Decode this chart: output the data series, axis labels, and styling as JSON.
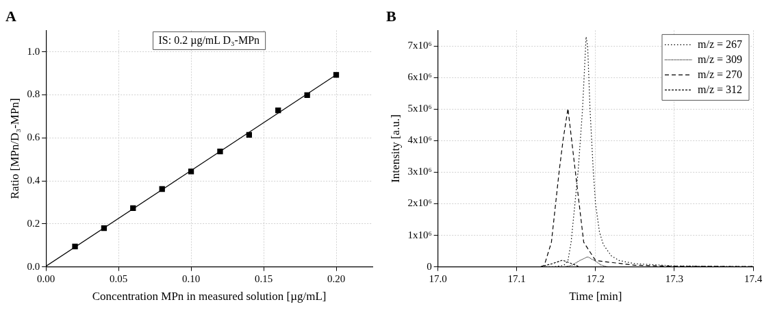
{
  "chart_data": [
    {
      "type": "scatter",
      "title": "A",
      "xlabel": "Concentration MPn in measured solution [µg/mL]",
      "ylabel": "Ratio [MPn/D₃-MPn]",
      "annotations": [
        "IS: 0.2 µg/mL D₃-MPn"
      ],
      "x": [
        0.02,
        0.04,
        0.06,
        0.08,
        0.1,
        0.12,
        0.14,
        0.16,
        0.18,
        0.2
      ],
      "series": [
        {
          "color": "#000000",
          "values": [
            0.095,
            0.18,
            0.273,
            0.362,
            0.444,
            0.537,
            0.614,
            0.728,
            0.799,
            0.893
          ]
        },
        {
          "type": "line",
          "marker": "none",
          "color": "#000000",
          "x": [
            0,
            0.2
          ],
          "values": [
            0.003,
            0.893
          ]
        }
      ],
      "marker": "square",
      "xlim": [
        0,
        0.225
      ],
      "ylim": [
        0,
        1.1
      ],
      "xticks": [
        {
          "value": 0,
          "label": "0.00"
        },
        0.05,
        {
          "value": 0.1,
          "label": "0.10"
        },
        0.15,
        {
          "value": 0.2,
          "label": "0.20"
        }
      ],
      "yticks": [
        {
          "value": 0,
          "label": "0.0"
        },
        0.2,
        0.4,
        0.6,
        0.8,
        {
          "value": 1,
          "label": "1.0"
        }
      ],
      "grid": true,
      "legend": false
    },
    {
      "type": "line",
      "title": "B",
      "xlabel": "Time [min]",
      "ylabel": "Intensity [a.u.]",
      "series": [
        {
          "name": "m/z = 267",
          "color": "#000000",
          "line_style": "dotted",
          "x": [
            17.0,
            17.13,
            17.15,
            17.16,
            17.165,
            17.169,
            17.175,
            17.178,
            17.1835,
            17.188,
            17.19,
            17.193,
            17.197,
            17.2,
            17.205,
            17.21,
            17.22,
            17.23,
            17.25,
            17.3,
            17.4
          ],
          "values": [
            0,
            0,
            10000,
            50000,
            200000,
            780000,
            2300000,
            3070000,
            5000000,
            7300000,
            7000000,
            5000000,
            3100000,
            2000000,
            1100000,
            700000,
            350000,
            200000,
            100000,
            30000,
            10000
          ]
        },
        {
          "name": "m/z = 309",
          "color": "#000000",
          "line_style": "dotted",
          "x": [
            17.0,
            17.16,
            17.17,
            17.18,
            17.19,
            17.2,
            17.207,
            17.215,
            17.4
          ],
          "values": [
            0,
            0,
            50000,
            200000,
            320000,
            180000,
            60000,
            0,
            0
          ]
        },
        {
          "name": "m/z = 270",
          "color": "#000000",
          "line_style": "dashed",
          "x": [
            17.0,
            17.13,
            17.135,
            17.144,
            17.154,
            17.159,
            17.165,
            17.174,
            17.185,
            17.2,
            17.25,
            17.3,
            17.4
          ],
          "values": [
            0,
            0,
            50000,
            780000,
            3070000,
            4060000,
            5020000,
            3100000,
            780000,
            200000,
            50000,
            20000,
            10000
          ]
        },
        {
          "name": "m/z = 312",
          "color": "#000000",
          "line_style": "dashed",
          "x": [
            17.0,
            17.13,
            17.145,
            17.158,
            17.17,
            17.18,
            17.4
          ],
          "values": [
            0,
            0,
            100000,
            210000,
            100000,
            0,
            0
          ]
        }
      ],
      "xlim": [
        17.0,
        17.4
      ],
      "ylim": [
        0,
        7500000
      ],
      "xticks": [
        {
          "value": 17,
          "label": "17.0"
        },
        17.1,
        17.2,
        17.3,
        17.4
      ],
      "yticks": [
        0,
        {
          "value": 1000000,
          "label": "1x10⁶"
        },
        {
          "value": 2000000,
          "label": "2x10⁶"
        },
        {
          "value": 3000000,
          "label": "3x10⁶"
        },
        {
          "value": 4000000,
          "label": "4x10⁶"
        },
        {
          "value": 5000000,
          "label": "5x10⁶"
        },
        {
          "value": 6000000,
          "label": "6x10⁶"
        },
        {
          "value": 7000000,
          "label": "7x10⁶"
        }
      ],
      "grid": true,
      "legend": "top right"
    }
  ]
}
